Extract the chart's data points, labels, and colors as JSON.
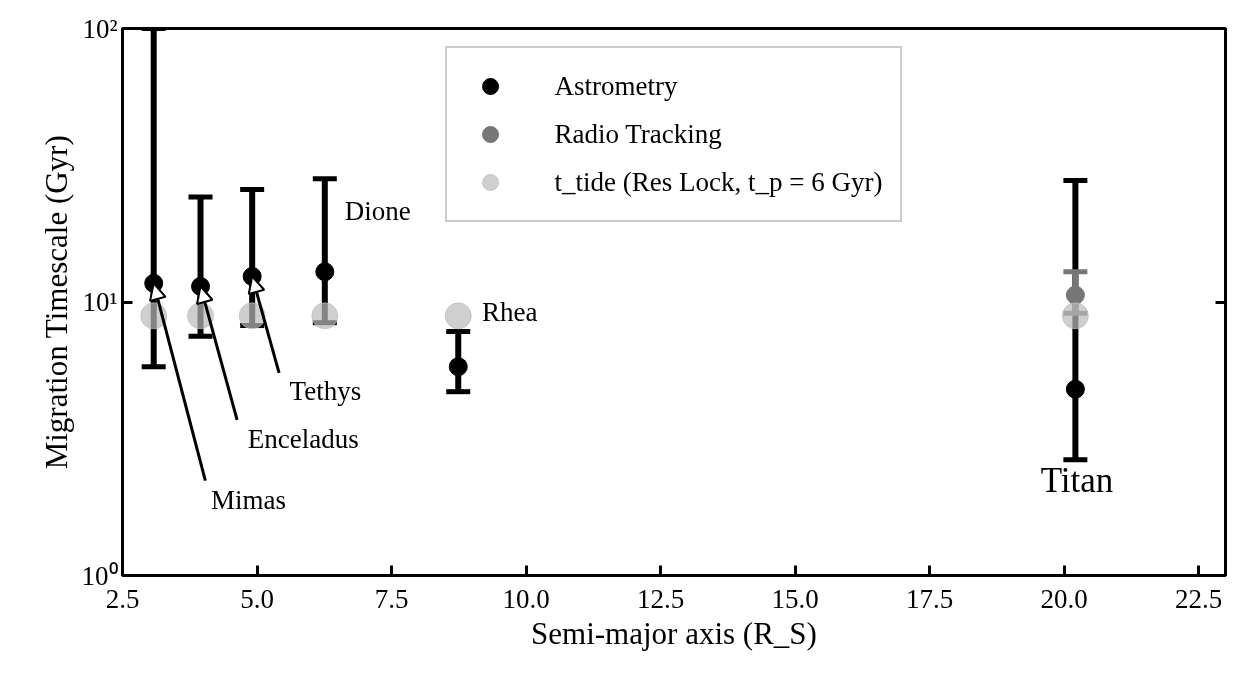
{
  "chart_data": {
    "type": "scatter",
    "xlabel": "Semi-major axis (R_S)",
    "ylabel": "Migration Timescale (Gyr)",
    "log": "y",
    "grid": false,
    "legend": "top",
    "marker": "circle",
    "xlim": [
      2.5,
      23
    ],
    "ylim": [
      1,
      100
    ],
    "xticks": [
      2.5,
      {
        "value": 5,
        "label": "5.0"
      },
      7.5,
      {
        "value": 10,
        "label": "10.0"
      },
      12.5,
      {
        "value": 15,
        "label": "15.0"
      },
      17.5,
      {
        "value": 20,
        "label": "20.0"
      },
      22.5
    ],
    "yticks": [
      {
        "value": 1,
        "label": "10⁰"
      },
      {
        "value": 10,
        "label": "10¹"
      },
      {
        "value": 100,
        "label": "10²"
      }
    ],
    "series": [
      {
        "name": "Astrometry",
        "color": "#000000",
        "x": [
          3.08,
          3.95,
          4.91,
          6.26,
          8.74,
          20.21
        ],
        "values": [
          11.7,
          11.4,
          12.4,
          12.9,
          5.8,
          4.8
        ],
        "errors": [
          [
            5.8,
            100
          ],
          [
            7.5,
            24.2
          ],
          [
            8.2,
            25.8
          ],
          [
            8.4,
            28.2
          ],
          [
            4.7,
            7.8
          ],
          [
            2.65,
            27.8
          ]
        ]
      },
      {
        "name": "Radio Tracking",
        "color": "#777777",
        "x": [
          20.21
        ],
        "values": [
          10.6
        ],
        "errors": [
          [
            9.1,
            12.9
          ]
        ]
      },
      {
        "name": "t_tide (Res Lock, t_p = 6 Gyr)",
        "color": "#bbbbbb",
        "x": [
          3.08,
          3.95,
          4.91,
          6.26,
          8.74,
          20.21
        ],
        "values": [
          8.9,
          8.9,
          8.9,
          8.9,
          8.9,
          8.9
        ]
      }
    ],
    "annotations": [
      {
        "text": "Mimas",
        "x": 3.08,
        "y": 11.7
      },
      {
        "text": "Enceladus",
        "x": 3.95,
        "y": 11.4
      },
      {
        "text": "Tethys",
        "x": 4.91,
        "y": 12.4
      },
      {
        "text": "Dione",
        "x": 6.26,
        "y": 12.9
      },
      {
        "text": "Rhea",
        "x": 8.74,
        "y": 8.9
      },
      {
        "text": "Titan",
        "x": 20.21,
        "y": 4.8
      }
    ]
  }
}
